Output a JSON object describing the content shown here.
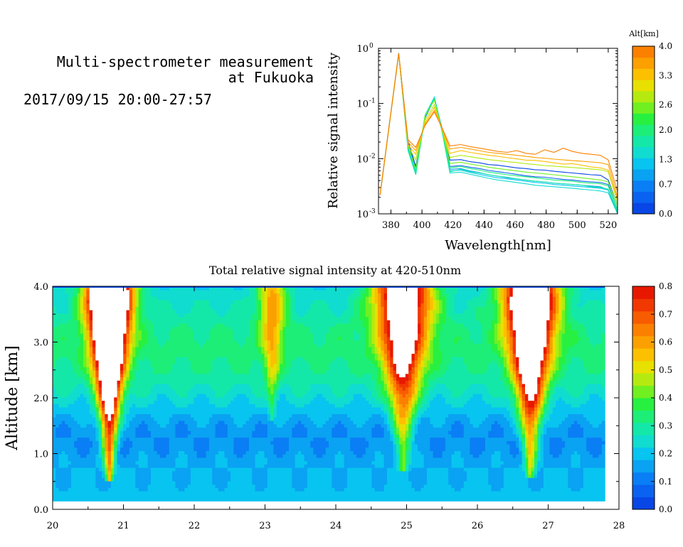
{
  "header": {
    "line1": "Multi-spectrometer measurement",
    "line2": "at Fukuoka",
    "datetime": "2017/09/15 20:00-27:57"
  },
  "chart_data": [
    {
      "type": "line",
      "xlabel": "Wavelength[nm]",
      "ylabel": "Relative signal intensity",
      "log_y": true,
      "xlim": [
        372,
        526
      ],
      "ylim": [
        0.001,
        1
      ],
      "x_ticks": [
        "380",
        "400",
        "420",
        "440",
        "460",
        "480",
        "500",
        "520"
      ],
      "y_tick_values": [
        0.001,
        0.01,
        0.1,
        1
      ],
      "y_ticks": [
        "10",
        "10",
        "10",
        "10"
      ],
      "y_tick_exps": [
        "-3",
        "-2",
        "-1",
        "0"
      ],
      "legend_title": "Alt[km]",
      "legend_ticks": [
        "0.0",
        "0.7",
        "1.3",
        "2.0",
        "2.6",
        "3.3",
        "4.0"
      ],
      "legend_range": [
        0,
        4
      ],
      "colors": [
        "#0846e6",
        "#0a62f0",
        "#0a7ef5",
        "#0aa2f2",
        "#08c4f0",
        "#10dcd0",
        "#14e8a8",
        "#1cee78",
        "#28f040",
        "#70f020",
        "#b4ea10",
        "#e8e000",
        "#fcc000",
        "#fca000",
        "#fc8000"
      ],
      "x": [
        373,
        385,
        391,
        396,
        402,
        408,
        413,
        418,
        425,
        431,
        437,
        443,
        449,
        455,
        461,
        467,
        473,
        479,
        485,
        491,
        497,
        503,
        509,
        515,
        520,
        526
      ],
      "series": [
        {
          "alt": 0.2,
          "values": [
            0.0022,
            0.8,
            0.021,
            0.0072,
            0.055,
            0.12,
            0.035,
            0.0094,
            0.0096,
            0.0088,
            0.0084,
            0.0078,
            0.0076,
            0.0072,
            0.0068,
            0.0066,
            0.0063,
            0.0062,
            0.0059,
            0.0057,
            0.0055,
            0.0053,
            0.0051,
            0.005,
            0.0041,
            0.0014
          ]
        },
        {
          "alt": 0.5,
          "values": [
            0.0022,
            0.82,
            0.019,
            0.0066,
            0.056,
            0.125,
            0.034,
            0.0072,
            0.0075,
            0.007,
            0.0066,
            0.0061,
            0.0058,
            0.0055,
            0.0052,
            0.0049,
            0.0047,
            0.0046,
            0.0044,
            0.0042,
            0.0041,
            0.0039,
            0.0038,
            0.0037,
            0.0034,
            0.0012
          ]
        },
        {
          "alt": 0.9,
          "values": [
            0.0022,
            0.8,
            0.018,
            0.0062,
            0.058,
            0.13,
            0.033,
            0.0064,
            0.0066,
            0.006,
            0.0056,
            0.0051,
            0.0048,
            0.0045,
            0.0043,
            0.0041,
            0.0039,
            0.0038,
            0.0036,
            0.0035,
            0.0034,
            0.0033,
            0.0032,
            0.0031,
            0.0027,
            0.0011
          ]
        },
        {
          "alt": 1.2,
          "values": [
            0.0022,
            0.8,
            0.016,
            0.0058,
            0.06,
            0.125,
            0.033,
            0.006,
            0.0062,
            0.0056,
            0.0052,
            0.0048,
            0.0045,
            0.0043,
            0.0041,
            0.0039,
            0.0037,
            0.0036,
            0.0034,
            0.0033,
            0.0032,
            0.0031,
            0.003,
            0.0029,
            0.0027,
            0.001
          ]
        },
        {
          "alt": 1.5,
          "values": [
            0.0022,
            0.8,
            0.015,
            0.0054,
            0.062,
            0.13,
            0.031,
            0.0055,
            0.0057,
            0.0052,
            0.0048,
            0.0044,
            0.0041,
            0.0039,
            0.0037,
            0.0035,
            0.0033,
            0.0032,
            0.0031,
            0.003,
            0.0029,
            0.0028,
            0.0027,
            0.0026,
            0.0024,
            0.001
          ]
        },
        {
          "alt": 1.8,
          "values": [
            0.0022,
            0.8,
            0.014,
            0.0051,
            0.058,
            0.12,
            0.03,
            0.0058,
            0.0064,
            0.0058,
            0.0055,
            0.0051,
            0.0048,
            0.0046,
            0.0043,
            0.0041,
            0.0039,
            0.0038,
            0.0036,
            0.0035,
            0.0034,
            0.0033,
            0.0031,
            0.003,
            0.0028,
            0.0011
          ]
        },
        {
          "alt": 2.1,
          "values": [
            0.0022,
            0.8,
            0.017,
            0.006,
            0.06,
            0.12,
            0.032,
            0.0068,
            0.0072,
            0.0066,
            0.0062,
            0.0057,
            0.0054,
            0.0051,
            0.0049,
            0.0047,
            0.0045,
            0.0043,
            0.0041,
            0.004,
            0.0039,
            0.0037,
            0.0036,
            0.0035,
            0.0032,
            0.0012
          ]
        },
        {
          "alt": 2.5,
          "values": [
            0.0022,
            0.8,
            0.017,
            0.0065,
            0.06,
            0.115,
            0.033,
            0.0082,
            0.0086,
            0.008,
            0.0075,
            0.007,
            0.0066,
            0.0063,
            0.006,
            0.0057,
            0.0055,
            0.0053,
            0.0051,
            0.0049,
            0.0047,
            0.0045,
            0.0043,
            0.0041,
            0.0038,
            0.0014
          ]
        },
        {
          "alt": 2.9,
          "values": [
            0.0022,
            0.8,
            0.017,
            0.0095,
            0.05,
            0.095,
            0.033,
            0.0105,
            0.0115,
            0.0108,
            0.0102,
            0.0096,
            0.0092,
            0.0088,
            0.0085,
            0.0081,
            0.0078,
            0.0075,
            0.0073,
            0.0071,
            0.0069,
            0.0067,
            0.0065,
            0.0063,
            0.0058,
            0.0016
          ]
        },
        {
          "alt": 3.2,
          "values": [
            0.0022,
            0.8,
            0.018,
            0.012,
            0.045,
            0.085,
            0.034,
            0.0125,
            0.014,
            0.013,
            0.0122,
            0.0115,
            0.011,
            0.0104,
            0.0099,
            0.0094,
            0.0093,
            0.0089,
            0.0084,
            0.008,
            0.0081,
            0.0076,
            0.0071,
            0.0068,
            0.0062,
            0.0018
          ]
        },
        {
          "alt": 3.5,
          "values": [
            0.0022,
            0.8,
            0.02,
            0.014,
            0.042,
            0.075,
            0.035,
            0.015,
            0.016,
            0.015,
            0.014,
            0.013,
            0.0125,
            0.012,
            0.0115,
            0.011,
            0.0105,
            0.0102,
            0.0098,
            0.0095,
            0.0092,
            0.009,
            0.0087,
            0.0084,
            0.0078,
            0.002
          ]
        },
        {
          "alt": 3.8,
          "values": [
            0.0022,
            0.8,
            0.022,
            0.016,
            0.04,
            0.07,
            0.036,
            0.017,
            0.018,
            0.0165,
            0.0155,
            0.0145,
            0.0135,
            0.013,
            0.014,
            0.0125,
            0.012,
            0.0145,
            0.013,
            0.0155,
            0.0135,
            0.0125,
            0.012,
            0.0115,
            0.0095,
            0.0025
          ]
        }
      ]
    },
    {
      "type": "heatmap",
      "title": "Total relative signal intensity at 420-510nm",
      "xlabel": "",
      "ylabel": "Altitude [km]",
      "xlim": [
        20,
        28
      ],
      "ylim": [
        0,
        4
      ],
      "x_ticks": [
        "20",
        "21",
        "22",
        "23",
        "24",
        "25",
        "26",
        "27",
        "28"
      ],
      "y_ticks": [
        "0.0",
        "1.0",
        "2.0",
        "3.0",
        "4.0"
      ],
      "data_x_range": [
        20,
        27.8
      ],
      "data_y_range": [
        0.15,
        4.0
      ],
      "colorbar_range": [
        0,
        0.8
      ],
      "colorbar_ticks": [
        "0.0",
        "0.1",
        "0.2",
        "0.3",
        "0.4",
        "0.5",
        "0.6",
        "0.7",
        "0.8"
      ],
      "colorbar_colors": [
        "#0846e6",
        "#0a62f0",
        "#0a7ef5",
        "#0aa2f2",
        "#08c4f0",
        "#10dcd0",
        "#14e8a8",
        "#1cee78",
        "#28f040",
        "#70f020",
        "#b4ea10",
        "#e8e000",
        "#fcc000",
        "#fca000",
        "#fc8000",
        "#f85c00",
        "#f03800",
        "#e81800"
      ],
      "saturated_color": "#ffffff",
      "features": [
        {
          "desc": "plume",
          "center_t": 20.8,
          "base_alt": 0.8,
          "width": 0.45,
          "peak": 1.2
        },
        {
          "desc": "plume",
          "center_t": 23.1,
          "base_alt": 1.9,
          "width": 0.3,
          "peak": 0.35
        },
        {
          "desc": "plume",
          "center_t": 24.95,
          "base_alt": 1.0,
          "width": 0.6,
          "peak": 0.75
        },
        {
          "desc": "plume",
          "center_t": 26.75,
          "base_alt": 0.9,
          "width": 0.55,
          "peak": 0.95
        }
      ]
    }
  ]
}
